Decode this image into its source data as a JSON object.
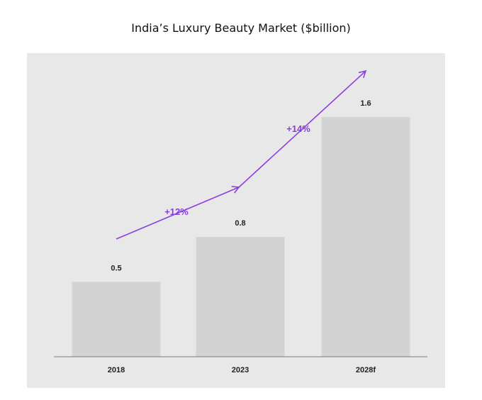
{
  "chart_data": {
    "type": "bar",
    "title": "India’s Luxury Beauty Market ($billion)",
    "xlabel": "",
    "ylabel": "",
    "categories": [
      "2018",
      "2023",
      "2028f"
    ],
    "values": [
      0.5,
      0.8,
      1.6
    ],
    "value_labels": [
      "0.5",
      "0.8",
      "1.6"
    ],
    "ylim": [
      0,
      1.6
    ],
    "grid": false,
    "growth_annotations": [
      {
        "from": "2018",
        "to": "2023",
        "label": "+12%"
      },
      {
        "from": "2023",
        "to": "2028f",
        "label": "+14%"
      }
    ],
    "colors": {
      "bar": "#d3d3d3",
      "background": "#e8e8e8",
      "axis": "#7a7a7a",
      "arrow": "#8b3fe0",
      "label": "#222222"
    }
  }
}
